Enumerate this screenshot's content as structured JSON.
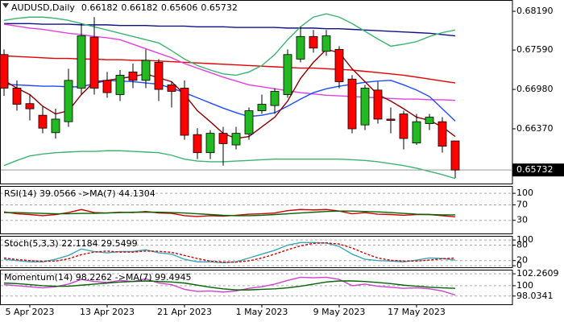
{
  "chart_data": [
    {
      "type": "candlestick",
      "title": "AUDUSD,Daily",
      "categories": [
        null,
        null,
        "5 Apr 2023",
        null,
        null,
        null,
        null,
        null,
        "13 Apr 2023",
        null,
        null,
        null,
        null,
        null,
        "21 Apr 2023",
        null,
        null,
        null,
        null,
        null,
        "1 May 2023",
        null,
        null,
        null,
        null,
        null,
        "9 May 2023",
        null,
        null,
        null,
        null,
        null,
        "17 May 2023",
        null,
        null,
        null
      ],
      "open": [
        0.6752,
        0.67,
        0.6676,
        0.6658,
        0.6631,
        0.6648,
        0.67,
        0.6779,
        0.6712,
        0.669,
        0.6725,
        0.6712,
        0.674,
        0.6705,
        0.67,
        0.6628,
        0.66,
        0.663,
        0.6612,
        0.6629,
        0.6665,
        0.6673,
        0.669,
        0.6745,
        0.678,
        0.6757,
        0.676,
        0.6714,
        0.6643,
        0.6697,
        0.6652,
        0.666,
        0.6615,
        0.6645,
        0.6648,
        0.66182
      ],
      "high": [
        0.676,
        0.6712,
        0.669,
        0.6672,
        0.6668,
        0.673,
        0.68,
        0.681,
        0.6725,
        0.6728,
        0.6738,
        0.676,
        0.6745,
        0.671,
        0.6712,
        0.6638,
        0.6635,
        0.664,
        0.664,
        0.667,
        0.669,
        0.67,
        0.676,
        0.6795,
        0.679,
        0.679,
        0.6765,
        0.672,
        0.6705,
        0.671,
        0.667,
        0.6665,
        0.666,
        0.666,
        0.6655,
        0.66182
      ],
      "low": [
        0.6688,
        0.6665,
        0.665,
        0.663,
        0.6622,
        0.664,
        0.669,
        0.669,
        0.6685,
        0.668,
        0.67,
        0.67,
        0.668,
        0.667,
        0.662,
        0.659,
        0.659,
        0.658,
        0.6605,
        0.662,
        0.666,
        0.666,
        0.6685,
        0.674,
        0.6755,
        0.675,
        0.67,
        0.663,
        0.6635,
        0.6645,
        0.663,
        0.6605,
        0.6612,
        0.6635,
        0.66,
        0.65606
      ],
      "close": [
        0.67,
        0.6675,
        0.6668,
        0.6638,
        0.6652,
        0.6712,
        0.6781,
        0.67,
        0.6693,
        0.672,
        0.6712,
        0.6743,
        0.6698,
        0.6695,
        0.6627,
        0.66,
        0.663,
        0.6614,
        0.663,
        0.6665,
        0.6675,
        0.6695,
        0.6752,
        0.678,
        0.6762,
        0.6781,
        0.671,
        0.6637,
        0.67,
        0.6652,
        0.665,
        0.6622,
        0.6648,
        0.6655,
        0.661,
        0.65732
      ],
      "up_color": "#22b822",
      "down_color": "#ff0000",
      "series": [
        {
          "color": "#10108a",
          "values": [
            0.68,
            0.68,
            0.68,
            0.6799,
            0.6799,
            0.6799,
            0.6798,
            0.6798,
            0.6798,
            0.6797,
            0.6797,
            0.6797,
            0.6796,
            0.6796,
            0.6796,
            0.6795,
            0.6795,
            0.6795,
            0.6794,
            0.6794,
            0.6794,
            0.6794,
            0.6793,
            0.6793,
            0.6793,
            0.6792,
            0.6792,
            0.6791,
            0.679,
            0.6789,
            0.6788,
            0.6787,
            0.6786,
            0.6785,
            0.6783,
            0.6781
          ]
        },
        {
          "color": "#e00000",
          "values": [
            0.675,
            0.6749,
            0.6748,
            0.6747,
            0.6746,
            0.6746,
            0.6745,
            0.6745,
            0.6744,
            0.6744,
            0.6743,
            0.6743,
            0.6742,
            0.6741,
            0.674,
            0.6739,
            0.6738,
            0.6737,
            0.6736,
            0.6735,
            0.6734,
            0.6733,
            0.6732,
            0.6731,
            0.6731,
            0.673,
            0.6729,
            0.6728,
            0.6726,
            0.6724,
            0.6722,
            0.672,
            0.6717,
            0.6714,
            0.6711,
            0.6708
          ]
        },
        {
          "color": "#e040e0",
          "values": [
            0.6799,
            0.6796,
            0.6793,
            0.6791,
            0.6788,
            0.6785,
            0.6783,
            0.678,
            0.6778,
            0.6775,
            0.6768,
            0.6761,
            0.6754,
            0.6747,
            0.6738,
            0.6731,
            0.6724,
            0.6717,
            0.6711,
            0.6705,
            0.6702,
            0.6699,
            0.6696,
            0.6693,
            0.6691,
            0.6689,
            0.6688,
            0.6687,
            0.6686,
            0.6685,
            0.6684,
            0.6683,
            0.6683,
            0.6682,
            0.6682,
            0.6681
          ]
        },
        {
          "color": "#1e4cff",
          "values": [
            0.6706,
            0.6705,
            0.6704,
            0.6703,
            0.6703,
            0.6702,
            0.6702,
            0.6707,
            0.6712,
            0.6711,
            0.671,
            0.6708,
            0.6706,
            0.67,
            0.6693,
            0.6685,
            0.6677,
            0.6669,
            0.6662,
            0.6656,
            0.6658,
            0.6662,
            0.6672,
            0.6683,
            0.6693,
            0.6699,
            0.6703,
            0.6706,
            0.6709,
            0.6711,
            0.6712,
            0.6705,
            0.6697,
            0.6687,
            0.6668,
            0.6649
          ]
        },
        {
          "color": "#8b0000",
          "values": [
            0.6712,
            0.67,
            0.669,
            0.6672,
            0.666,
            0.6665,
            0.669,
            0.671,
            0.6712,
            0.6715,
            0.6718,
            0.6722,
            0.6716,
            0.671,
            0.669,
            0.6665,
            0.6648,
            0.663,
            0.6622,
            0.6625,
            0.664,
            0.6655,
            0.668,
            0.6715,
            0.674,
            0.676,
            0.6755,
            0.673,
            0.671,
            0.669,
            0.668,
            0.6668,
            0.6655,
            0.665,
            0.664,
            0.6625
          ]
        },
        {
          "color": "#3cb371",
          "values": [
            0.6805,
            0.6808,
            0.681,
            0.681,
            0.6808,
            0.6805,
            0.68,
            0.6795,
            0.679,
            0.6785,
            0.678,
            0.6775,
            0.677,
            0.6758,
            0.6745,
            0.6735,
            0.6728,
            0.6722,
            0.672,
            0.6725,
            0.6735,
            0.6752,
            0.6775,
            0.6795,
            0.681,
            0.6815,
            0.681,
            0.68,
            0.6788,
            0.6776,
            0.6765,
            0.6768,
            0.6772,
            0.678,
            0.6786,
            0.679
          ]
        },
        {
          "color": "#3cb371",
          "values": [
            0.658,
            0.6588,
            0.6595,
            0.6598,
            0.66,
            0.6601,
            0.6602,
            0.6602,
            0.6603,
            0.6603,
            0.6602,
            0.6601,
            0.66,
            0.6596,
            0.659,
            0.6587,
            0.6586,
            0.6586,
            0.6587,
            0.6588,
            0.6589,
            0.659,
            0.659,
            0.659,
            0.659,
            0.659,
            0.659,
            0.6589,
            0.6588,
            0.6586,
            0.6583,
            0.658,
            0.6576,
            0.6571,
            0.6566,
            0.656
          ]
        }
      ],
      "ylim": [
        0.65522,
        0.68365
      ],
      "yticks": [
        {
          "value": 0.6819,
          "label": "0.68190"
        },
        {
          "value": 0.6759,
          "label": "0.67590"
        },
        {
          "value": 0.6698,
          "label": "0.66980"
        },
        {
          "value": 0.6637,
          "label": "0.66370"
        }
      ],
      "grid": false
    },
    {
      "type": "line",
      "title": "RSI(14) 39.0566 ->MA(7) 44.1304",
      "series": [
        {
          "color": "#cc0000",
          "values": [
            52,
            47,
            45,
            42,
            45,
            50,
            58,
            50,
            49,
            51,
            50,
            53,
            49,
            48,
            42,
            40,
            42,
            41,
            43,
            46,
            47,
            49,
            55,
            58,
            57,
            58,
            54,
            47,
            50,
            46,
            45,
            43,
            45,
            45,
            42,
            39.0566
          ]
        },
        {
          "color": "#006400",
          "values": [
            50,
            50,
            49,
            48,
            47,
            47,
            48,
            48,
            49,
            50,
            51,
            51,
            51,
            50,
            49,
            47,
            45,
            43,
            42,
            42,
            43,
            45,
            47,
            49,
            51,
            53,
            54,
            54,
            53,
            52,
            50,
            48,
            46,
            45,
            44,
            44.1304
          ]
        }
      ],
      "ylim": [
        -4,
        119
      ],
      "yticks": [
        100,
        70,
        30
      ],
      "grid": true
    },
    {
      "type": "line",
      "title": "Stoch(5,3,3) 22.1184 29.5499",
      "series": [
        {
          "color": "#3aa6b8",
          "values": [
            25,
            20,
            15,
            15,
            25,
            40,
            65,
            55,
            50,
            55,
            55,
            62,
            50,
            45,
            25,
            15,
            15,
            12,
            15,
            30,
            45,
            60,
            80,
            90,
            90,
            88,
            75,
            45,
            25,
            20,
            18,
            15,
            22,
            30,
            28,
            22.1184
          ]
        },
        {
          "color": "#cc0000",
          "style": "dashed",
          "values": [
            30,
            24,
            20,
            17,
            18,
            27,
            43,
            53,
            57,
            53,
            53,
            57,
            56,
            52,
            40,
            28,
            18,
            14,
            14,
            19,
            30,
            45,
            62,
            77,
            87,
            89,
            84,
            69,
            48,
            30,
            21,
            18,
            18,
            22,
            27,
            29.5499
          ]
        }
      ],
      "ylim": [
        -6,
        116
      ],
      "yticks": [
        100,
        80,
        20,
        0
      ],
      "grid": true
    },
    {
      "type": "line",
      "title": "Momentum(14) 98.2262 ->MA(7) 99.4945",
      "series": [
        {
          "color": "#d040d0",
          "values": [
            100.2,
            100.0,
            99.8,
            99.6,
            99.8,
            100.3,
            101.2,
            100.8,
            100.6,
            101.0,
            100.8,
            101.3,
            100.5,
            100.2,
            99.3,
            98.9,
            99.0,
            98.8,
            99.0,
            99.5,
            99.8,
            100.3,
            101.0,
            101.6,
            101.5,
            101.6,
            101.2,
            100.0,
            100.3,
            99.9,
            99.7,
            99.5,
            99.6,
            99.4,
            99.0,
            98.2262
          ]
        },
        {
          "color": "#006400",
          "values": [
            100.5,
            100.4,
            100.2,
            100.0,
            99.9,
            99.9,
            100.1,
            100.3,
            100.5,
            100.7,
            100.8,
            100.9,
            100.8,
            100.7,
            100.5,
            100.1,
            99.7,
            99.4,
            99.2,
            99.2,
            99.3,
            99.4,
            99.6,
            99.9,
            100.3,
            100.7,
            100.9,
            100.9,
            100.8,
            100.6,
            100.4,
            100.1,
            99.9,
            99.7,
            99.6,
            99.4945
          ]
        }
      ],
      "ylim": [
        96.47,
        103.04
      ],
      "yticks": [
        102.2609,
        100,
        98.0341
      ],
      "grid": true
    }
  ]
}
